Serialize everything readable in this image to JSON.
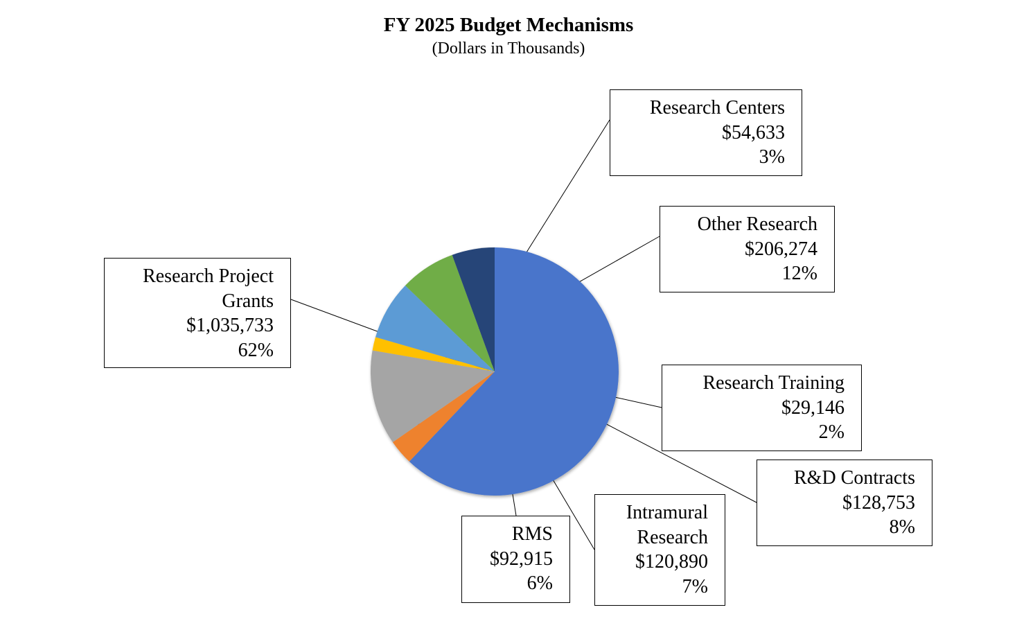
{
  "chart_data": {
    "type": "pie",
    "title": "FY 2025 Budget Mechanisms",
    "subtitle": "(Dollars in Thousands)",
    "start_angle_deg": 0,
    "direction": "clockwise",
    "slices": [
      {
        "label_lines": [
          "Research Project",
          "Grants"
        ],
        "value": 1035733,
        "value_label": "$1,035,733",
        "percent_label": "62%",
        "color": "#4874CB"
      },
      {
        "label_lines": [
          "Research Centers"
        ],
        "value": 54633,
        "value_label": "$54,633",
        "percent_label": "3%",
        "color": "#EE822F"
      },
      {
        "label_lines": [
          "Other Research"
        ],
        "value": 206274,
        "value_label": "$206,274",
        "percent_label": "12%",
        "color": "#A5A5A5"
      },
      {
        "label_lines": [
          "Research Training"
        ],
        "value": 29146,
        "value_label": "$29,146",
        "percent_label": "2%",
        "color": "#FFC000"
      },
      {
        "label_lines": [
          "R&D Contracts"
        ],
        "value": 128753,
        "value_label": "$128,753",
        "percent_label": "8%",
        "color": "#5B9BD5"
      },
      {
        "label_lines": [
          "Intramural",
          "Research"
        ],
        "value": 120890,
        "value_label": "$120,890",
        "percent_label": "7%",
        "color": "#70AD47"
      },
      {
        "label_lines": [
          "RMS"
        ],
        "value": 92915,
        "value_label": "$92,915",
        "percent_label": "6%",
        "color": "#264478"
      }
    ]
  }
}
